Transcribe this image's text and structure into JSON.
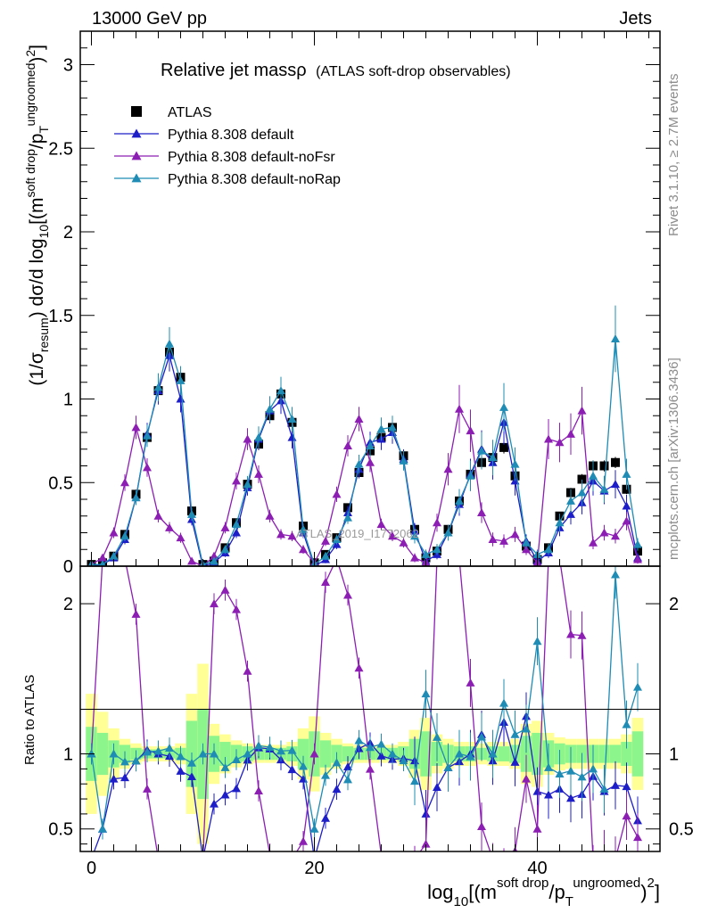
{
  "header": {
    "left": "13000 GeV pp",
    "right": "Jets"
  },
  "side_labels": {
    "top": "Rivet 3.1.10, ≥ 2.7M events",
    "bottom": "mcplots.cern.ch [arXiv:1306.3436]"
  },
  "watermark": "ATLAS_2019_I1772062",
  "chart_data": {
    "type": "line",
    "title_main": "Relative jet massρ",
    "title_sub": "(ATLAS soft-drop observables)",
    "ylabel": "(1/σresum) dσ/d log10[(msoft drop/pTungroomed)2]",
    "xlabel": "log10[(msoft drop/pTungroomed)2]",
    "ratio_ylabel": "Ratio to ATLAS",
    "xlim": [
      -1,
      51
    ],
    "ylim": [
      0,
      3.2
    ],
    "ratio_ylim": [
      0.35,
      2.25
    ],
    "x_ticks": [
      0,
      20,
      40
    ],
    "y_ticks": [
      0,
      0.5,
      1,
      1.5,
      2,
      2.5,
      3
    ],
    "y_tick_labels": [
      "0",
      "0.5",
      "1",
      "1.5",
      "2",
      "2.5",
      "3"
    ],
    "ratio_y_ticks": [
      0.5,
      1,
      2
    ],
    "ratio_y_tick_labels": [
      "0.5",
      "1",
      "2"
    ],
    "x": [
      0,
      1,
      2,
      3,
      4,
      5,
      6,
      7,
      8,
      9,
      10,
      11,
      12,
      13,
      14,
      15,
      16,
      17,
      18,
      19,
      20,
      21,
      22,
      23,
      24,
      25,
      26,
      27,
      28,
      29,
      30,
      31,
      32,
      33,
      34,
      35,
      36,
      37,
      38,
      39,
      40,
      41,
      42,
      43,
      44,
      45,
      46,
      47,
      48,
      49
    ],
    "series": [
      {
        "name": "ATLAS",
        "color": "#000000",
        "marker": "square",
        "values": [
          0.01,
          0.02,
          0.06,
          0.19,
          0.43,
          0.77,
          1.05,
          1.28,
          1.13,
          0.33,
          0.01,
          0.03,
          0.11,
          0.26,
          0.49,
          0.73,
          0.9,
          1.03,
          0.86,
          0.24,
          0.02,
          0.07,
          0.17,
          0.35,
          0.56,
          0.69,
          0.77,
          0.83,
          0.66,
          0.22,
          0.05,
          0.09,
          0.22,
          0.39,
          0.55,
          0.62,
          0.65,
          0.71,
          0.54,
          0.12,
          0.04,
          0.11,
          0.3,
          0.44,
          0.52,
          0.6,
          0.6,
          0.62,
          0.46,
          0.09
        ]
      },
      {
        "name": "Pythia 8.308 default",
        "color": "#1e1ec8",
        "marker": "triangle",
        "values": [
          0.0,
          0.01,
          0.05,
          0.16,
          0.41,
          0.79,
          1.05,
          1.26,
          1.0,
          0.28,
          0.0,
          0.02,
          0.08,
          0.2,
          0.47,
          0.76,
          0.93,
          0.99,
          0.77,
          0.2,
          0.0,
          0.04,
          0.13,
          0.32,
          0.58,
          0.74,
          0.76,
          0.8,
          0.64,
          0.21,
          0.03,
          0.07,
          0.2,
          0.37,
          0.55,
          0.7,
          0.62,
          0.86,
          0.51,
          0.15,
          0.03,
          0.08,
          0.23,
          0.31,
          0.38,
          0.51,
          0.45,
          0.49,
          0.36,
          0.05
        ]
      },
      {
        "name": "Pythia 8.308 default-noFsr",
        "color": "#8c1eb4",
        "marker": "triangle",
        "values": [
          0.01,
          0.05,
          0.2,
          0.5,
          0.83,
          0.59,
          0.3,
          0.23,
          0.17,
          0.03,
          0.0,
          0.06,
          0.23,
          0.51,
          0.76,
          0.55,
          0.3,
          0.19,
          0.18,
          0.1,
          0.02,
          0.15,
          0.43,
          0.72,
          0.88,
          0.62,
          0.25,
          0.18,
          0.14,
          0.05,
          0.02,
          0.26,
          0.58,
          0.94,
          0.81,
          0.32,
          0.16,
          0.15,
          0.19,
          0.1,
          0.02,
          0.76,
          0.74,
          0.79,
          0.93,
          0.14,
          0.2,
          0.18,
          0.27,
          0.04
        ]
      },
      {
        "name": "Pythia 8.308 default-noRap",
        "color": "#1e8cb4",
        "marker": "triangle",
        "values": [
          0.01,
          0.01,
          0.06,
          0.18,
          0.41,
          0.78,
          1.07,
          1.33,
          1.11,
          0.31,
          0.01,
          0.03,
          0.1,
          0.25,
          0.49,
          0.77,
          0.94,
          1.05,
          0.88,
          0.22,
          0.01,
          0.06,
          0.16,
          0.29,
          0.61,
          0.72,
          0.82,
          0.83,
          0.63,
          0.18,
          0.07,
          0.1,
          0.2,
          0.39,
          0.54,
          0.69,
          0.65,
          0.95,
          0.61,
          0.14,
          0.07,
          0.1,
          0.26,
          0.39,
          0.44,
          0.54,
          0.46,
          1.36,
          0.55,
          0.13
        ]
      }
    ],
    "error_band": {
      "inner_color": "#8cf58c",
      "outer_color": "#ffff96",
      "inner_halfwidth": [
        0.18,
        0.14,
        0.09,
        0.06,
        0.04,
        0.03,
        0.03,
        0.03,
        0.04,
        0.22,
        0.3,
        0.12,
        0.08,
        0.06,
        0.05,
        0.04,
        0.04,
        0.04,
        0.05,
        0.1,
        0.15,
        0.09,
        0.06,
        0.05,
        0.04,
        0.04,
        0.04,
        0.04,
        0.05,
        0.1,
        0.15,
        0.08,
        0.06,
        0.05,
        0.05,
        0.04,
        0.05,
        0.05,
        0.06,
        0.12,
        0.14,
        0.09,
        0.07,
        0.06,
        0.06,
        0.06,
        0.06,
        0.06,
        0.08,
        0.15
      ],
      "outer_halfwidth": [
        0.4,
        0.28,
        0.17,
        0.1,
        0.07,
        0.05,
        0.05,
        0.05,
        0.07,
        0.4,
        0.6,
        0.2,
        0.13,
        0.09,
        0.07,
        0.06,
        0.06,
        0.06,
        0.08,
        0.17,
        0.25,
        0.14,
        0.1,
        0.07,
        0.06,
        0.06,
        0.06,
        0.06,
        0.08,
        0.16,
        0.24,
        0.13,
        0.1,
        0.08,
        0.08,
        0.07,
        0.08,
        0.08,
        0.1,
        0.2,
        0.22,
        0.14,
        0.11,
        0.1,
        0.1,
        0.1,
        0.1,
        0.1,
        0.13,
        0.24
      ]
    },
    "legend_placement": "top-left",
    "grid": false
  }
}
